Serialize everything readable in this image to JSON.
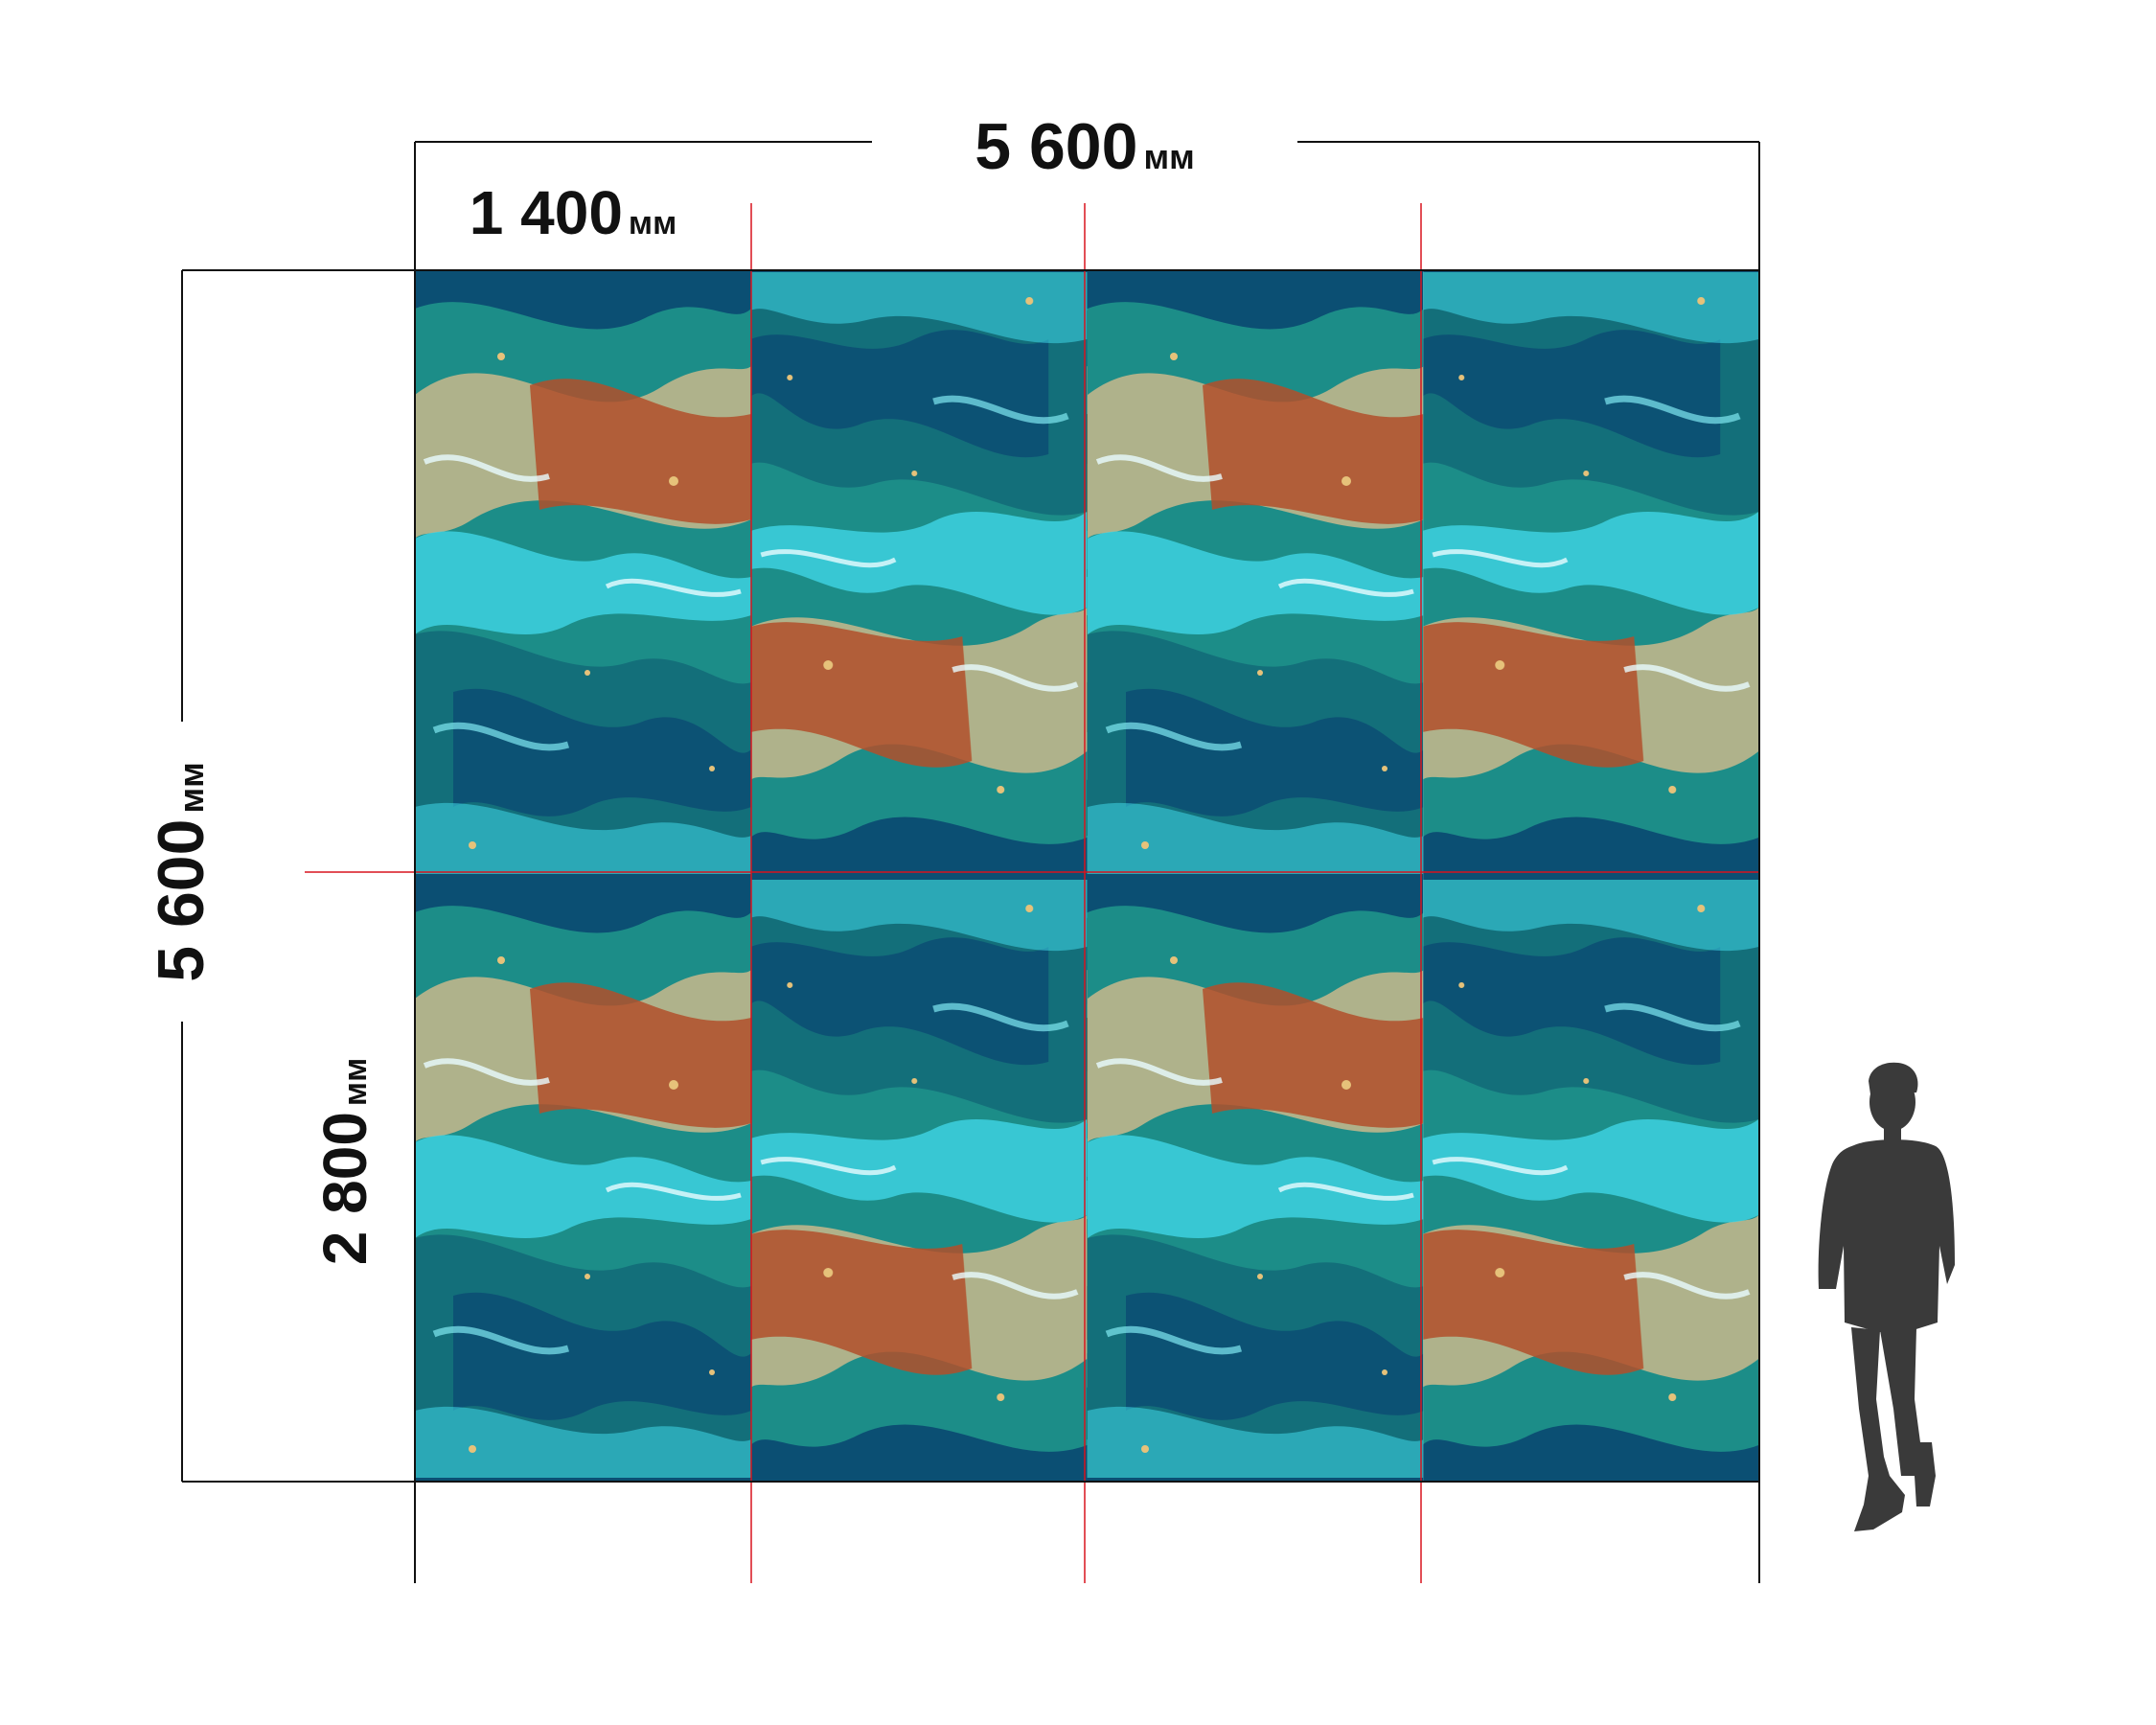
{
  "dimensions": {
    "total_width": {
      "value": "5 600",
      "unit": "мм"
    },
    "panel_width": {
      "value": "1 400",
      "unit": "мм"
    },
    "total_height": {
      "value": "5 600",
      "unit": "мм"
    },
    "panel_height": {
      "value": "2 800",
      "unit": "мм"
    }
  },
  "grid": {
    "columns": 4,
    "rows": 2
  },
  "colors": {
    "dimension_line": "#111111",
    "cut_line": "#d8141e",
    "silhouette": "#3a3a3a",
    "marble_deep": "#0b4f73",
    "marble_teal": "#1c8d88",
    "marble_cyan": "#3ed6e6",
    "marble_sand": "#c9b98c",
    "marble_rust": "#b24f2a"
  },
  "figure": {
    "icon": "person-silhouette-icon"
  }
}
